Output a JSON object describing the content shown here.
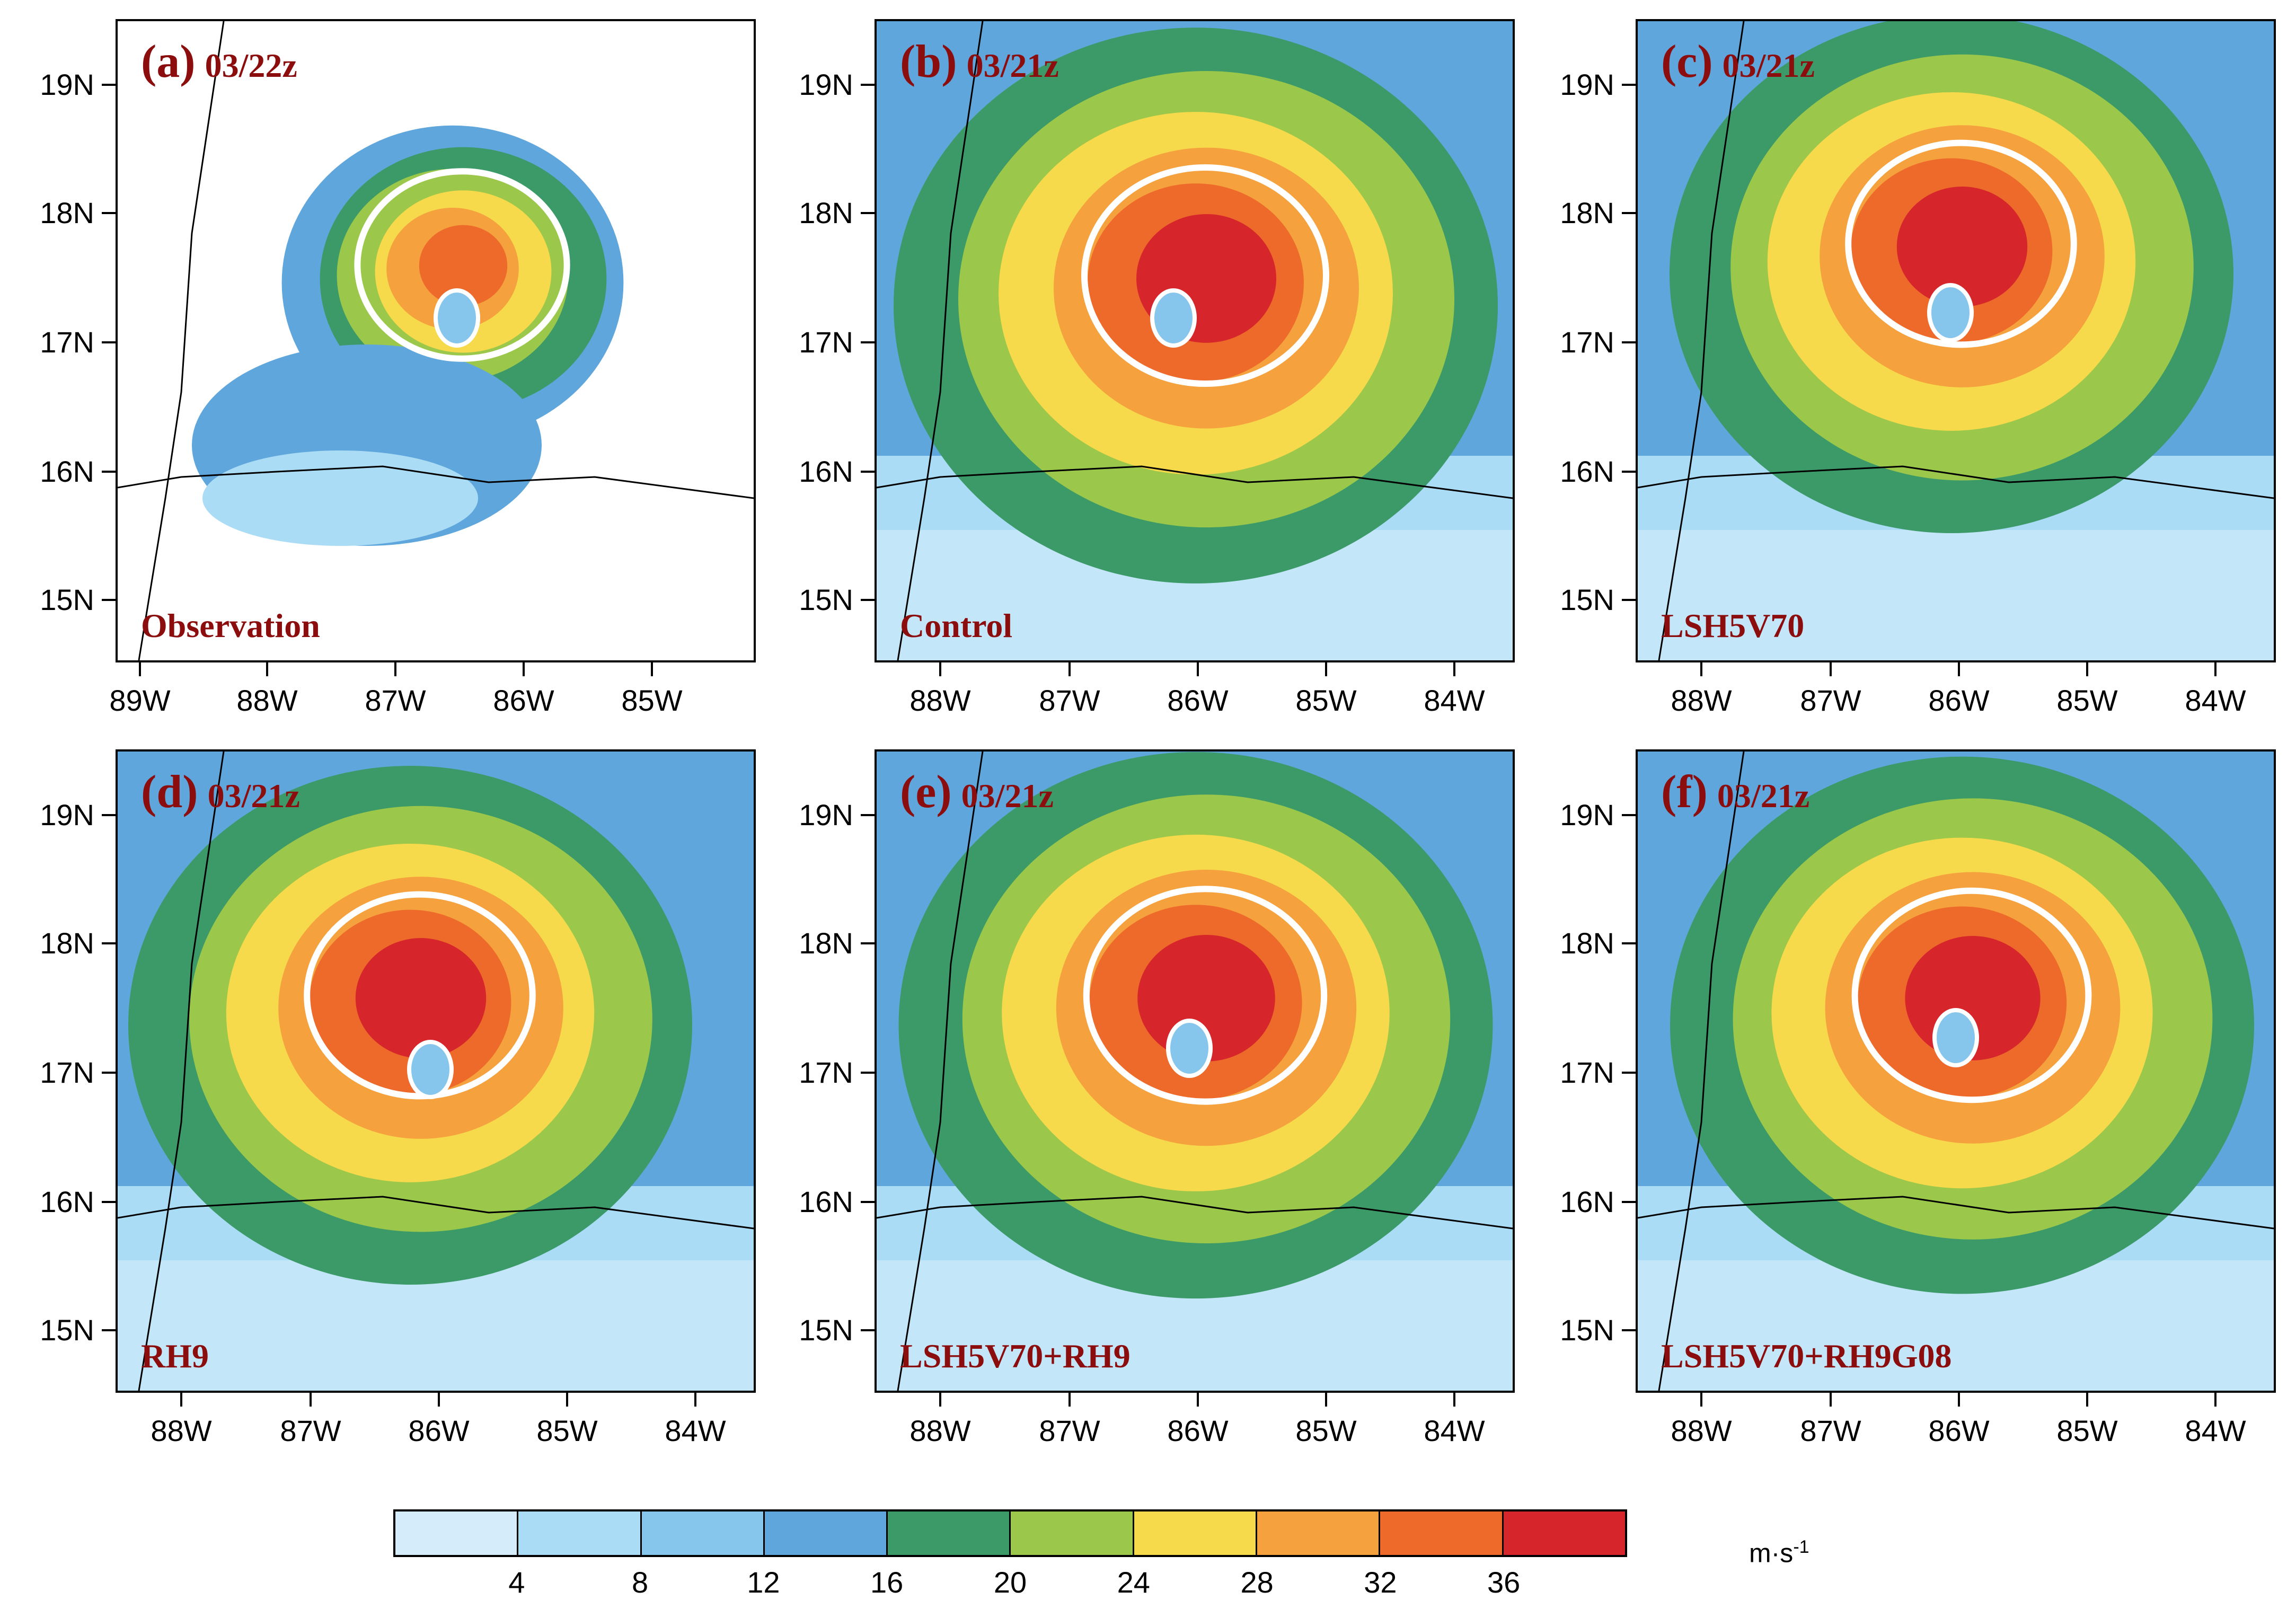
{
  "panels": [
    {
      "letter": "(a)",
      "time": "03/22z",
      "name": "Observation",
      "y_ticks": [
        "19N",
        "18N",
        "17N",
        "16N",
        "15N"
      ],
      "x_ticks": [
        "89W",
        "88W",
        "87W",
        "86W",
        "85W"
      ]
    },
    {
      "letter": "(b)",
      "time": "03/21z",
      "name": "Control",
      "y_ticks": [
        "19N",
        "18N",
        "17N",
        "16N",
        "15N"
      ],
      "x_ticks": [
        "88W",
        "87W",
        "86W",
        "85W",
        "84W"
      ]
    },
    {
      "letter": "(c)",
      "time": "03/21z",
      "name": "LSH5V70",
      "y_ticks": [
        "19N",
        "18N",
        "17N",
        "16N",
        "15N"
      ],
      "x_ticks": [
        "88W",
        "87W",
        "86W",
        "85W",
        "84W"
      ]
    },
    {
      "letter": "(d)",
      "time": "03/21z",
      "name": "RH9",
      "y_ticks": [
        "19N",
        "18N",
        "17N",
        "16N",
        "15N"
      ],
      "x_ticks": [
        "88W",
        "87W",
        "86W",
        "85W",
        "84W"
      ]
    },
    {
      "letter": "(e)",
      "time": "03/21z",
      "name": "LSH5V70+RH9",
      "y_ticks": [
        "19N",
        "18N",
        "17N",
        "16N",
        "15N"
      ],
      "x_ticks": [
        "88W",
        "87W",
        "86W",
        "85W",
        "84W"
      ]
    },
    {
      "letter": "(f)",
      "time": "03/21z",
      "name": "LSH5V70+RH9G08",
      "y_ticks": [
        "19N",
        "18N",
        "17N",
        "16N",
        "15N"
      ],
      "x_ticks": [
        "88W",
        "87W",
        "86W",
        "85W",
        "84W"
      ]
    }
  ],
  "colorbar": {
    "labels": [
      "4",
      "8",
      "12",
      "16",
      "20",
      "24",
      "28",
      "32",
      "36"
    ],
    "colors": [
      "#d5ecfb",
      "#aadcf6",
      "#86c6ec",
      "#5fa6dc",
      "#3c9a68",
      "#9bc84a",
      "#f7d94c",
      "#f5a13e",
      "#ee6a2a",
      "#d6262b"
    ],
    "units": "m·s",
    "units_exp": "-1"
  }
}
